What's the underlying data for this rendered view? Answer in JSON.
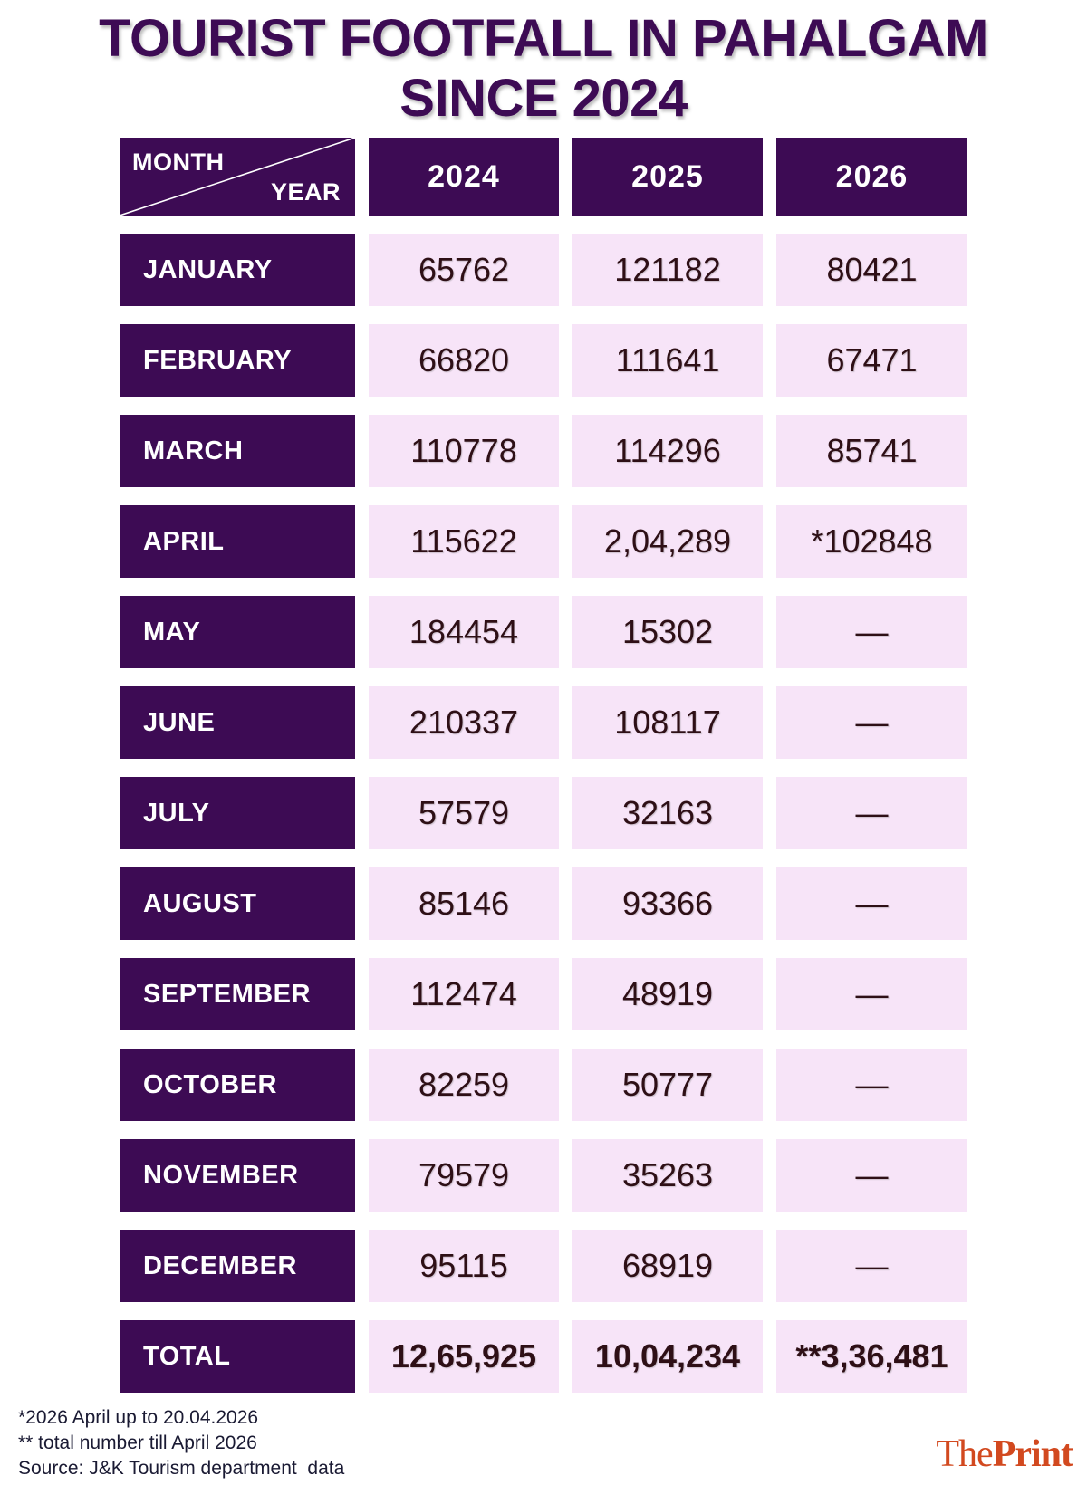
{
  "title": {
    "line1": "TOURIST FOOTFALL IN PAHALGAM",
    "line2": "SINCE 2024"
  },
  "chart_data": {
    "type": "table",
    "title": "TOURIST FOOTFALL IN PAHALGAM SINCE 2024",
    "corner": {
      "row_axis": "MONTH",
      "col_axis": "YEAR"
    },
    "columns": [
      "2024",
      "2025",
      "2026"
    ],
    "rows": [
      {
        "label": "JANUARY",
        "values": [
          "65762",
          "121182",
          "80421"
        ]
      },
      {
        "label": "FEBRUARY",
        "values": [
          "66820",
          "111641",
          "67471"
        ]
      },
      {
        "label": "MARCH",
        "values": [
          "110778",
          "114296",
          "85741"
        ]
      },
      {
        "label": "APRIL",
        "values": [
          "115622",
          "2,04,289",
          "*102848"
        ]
      },
      {
        "label": "MAY",
        "values": [
          "184454",
          "15302",
          "—"
        ]
      },
      {
        "label": "JUNE",
        "values": [
          "210337",
          "108117",
          "—"
        ]
      },
      {
        "label": "JULY",
        "values": [
          "57579",
          "32163",
          "—"
        ]
      },
      {
        "label": "AUGUST",
        "values": [
          "85146",
          "93366",
          "—"
        ]
      },
      {
        "label": "SEPTEMBER",
        "values": [
          "112474",
          "48919",
          "—"
        ]
      },
      {
        "label": "OCTOBER",
        "values": [
          "82259",
          "50777",
          "—"
        ]
      },
      {
        "label": "NOVEMBER",
        "values": [
          "79579",
          "35263",
          "—"
        ]
      },
      {
        "label": "DECEMBER",
        "values": [
          "95115",
          "68919",
          "—"
        ]
      },
      {
        "label": "TOTAL",
        "values": [
          "12,65,925",
          "10,04,234",
          "**3,36,481"
        ],
        "bold": true
      }
    ]
  },
  "footnotes": [
    "*2026 April up to 20.04.2026",
    "** total number till April 2026",
    "Source: J&K Tourism department  data"
  ],
  "branding": {
    "the": "The",
    "print": "Print"
  },
  "colors": {
    "header_purple": "#3D0B54",
    "cell_pink": "#F7E4F8",
    "value_text": "#2E0F16",
    "title_text": "#3D0B54",
    "footnote_text": "#1A1A33",
    "brand_orange": "#D2491F"
  }
}
